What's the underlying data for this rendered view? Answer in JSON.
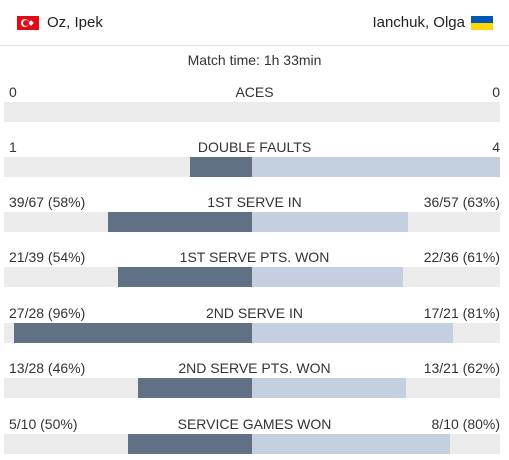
{
  "players": {
    "left": {
      "name": "Oz, Ipek",
      "flag": "turkey-flag-icon"
    },
    "right": {
      "name": "Ianchuk, Olga",
      "flag": "ukraine-flag-icon"
    }
  },
  "match_time": "Match time: 1h 33min",
  "colors": {
    "left_bar": "#617185",
    "right_bar": "#c4d0e0",
    "track": "#ebebeb"
  },
  "stats": [
    {
      "name": "ACES",
      "left": "0",
      "right": "0",
      "left_share": 0,
      "right_share": 0
    },
    {
      "name": "DOUBLE FAULTS",
      "left": "1",
      "right": "4",
      "left_share": 0.25,
      "right_share": 1.0
    },
    {
      "name": "1ST SERVE IN",
      "left": "39/67 (58%)",
      "right": "36/57 (63%)",
      "left_share": 0.58,
      "right_share": 0.63
    },
    {
      "name": "1ST SERVE PTS. WON",
      "left": "21/39 (54%)",
      "right": "22/36 (61%)",
      "left_share": 0.54,
      "right_share": 0.61
    },
    {
      "name": "2ND SERVE IN",
      "left": "27/28 (96%)",
      "right": "17/21 (81%)",
      "left_share": 0.96,
      "right_share": 0.81
    },
    {
      "name": "2ND SERVE PTS. WON",
      "left": "13/28 (46%)",
      "right": "13/21 (62%)",
      "left_share": 0.46,
      "right_share": 0.62
    },
    {
      "name": "SERVICE GAMES WON",
      "left": "5/10 (50%)",
      "right": "8/10 (80%)",
      "left_share": 0.5,
      "right_share": 0.8
    }
  ]
}
